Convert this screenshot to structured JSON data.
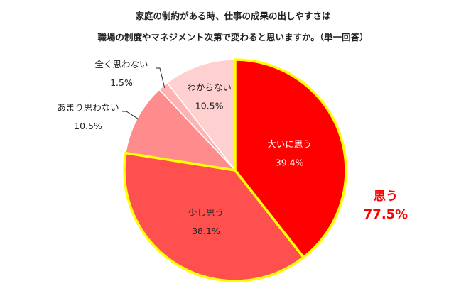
{
  "title_lines": [
    "家庭の制約がある時、仕事の成果の出しやすさは",
    "職場の制度やマネジメント次第で変わると思いますか。（単一回答）"
  ],
  "chart_data": {
    "type": "pie",
    "slices": [
      {
        "label": "大いに思う",
        "value": 39.4,
        "display": "39.4%",
        "color": "#ff0000",
        "highlighted": true
      },
      {
        "label": "少し思う",
        "value": 38.1,
        "display": "38.1%",
        "color": "#ff5050",
        "highlighted": true
      },
      {
        "label": "あまり思わない",
        "value": 10.5,
        "display": "10.5%",
        "color": "#ff8c8c",
        "highlighted": false
      },
      {
        "label": "全く思わない",
        "value": 1.5,
        "display": "1.5%",
        "color": "#ffb2b2",
        "highlighted": false
      },
      {
        "label": "わからない",
        "value": 10.5,
        "display": "10.5%",
        "color": "#ffd0d0",
        "highlighted": false
      }
    ],
    "start_angle_deg": 0,
    "direction": "clockwise",
    "highlight_outline_color": "#ffff00",
    "summary": {
      "label": "思う",
      "value": "77.5%",
      "color": "#ff0000"
    }
  }
}
